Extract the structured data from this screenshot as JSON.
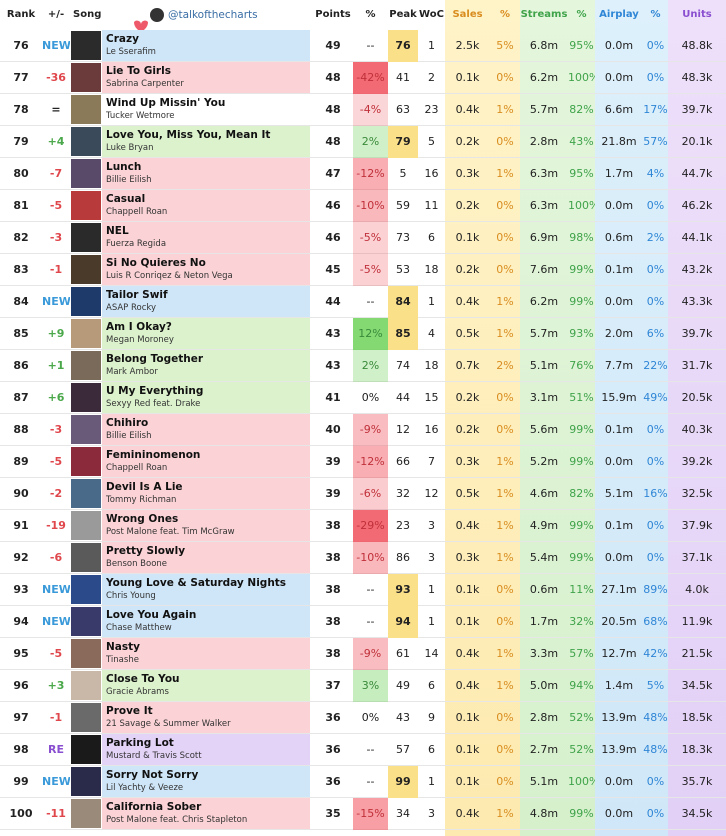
{
  "handle": "@talkofthecharts",
  "table": {
    "header": [
      "Rank",
      "+/-",
      "Song",
      "Points",
      "%",
      "Peak",
      "WoC",
      "Sales",
      "%",
      "Streams",
      "%",
      "Airplay",
      "%",
      "Units"
    ],
    "rows": [
      [
        76,
        "NEW",
        "Crazy",
        "Le Sserafim",
        49,
        "--",
        76,
        1,
        "2.5k",
        "5%",
        "6.8m",
        "95%",
        "0.0m",
        "0%",
        "48.8k"
      ],
      [
        77,
        "-36",
        "Lie To Girls",
        "Sabrina Carpenter",
        48,
        "-42%",
        41,
        2,
        "0.1k",
        "0%",
        "6.2m",
        "100%",
        "0.0m",
        "0%",
        "48.3k"
      ],
      [
        78,
        "=",
        "Wind Up Missin' You",
        "Tucker Wetmore",
        48,
        "-4%",
        63,
        23,
        "0.4k",
        "1%",
        "5.7m",
        "82%",
        "6.6m",
        "17%",
        "39.7k"
      ],
      [
        79,
        "+4",
        "Love You, Miss You, Mean It",
        "Luke Bryan",
        48,
        "2%",
        79,
        5,
        "0.2k",
        "0%",
        "2.8m",
        "43%",
        "21.8m",
        "57%",
        "20.1k"
      ],
      [
        80,
        "-7",
        "Lunch",
        "Billie Eilish",
        47,
        "-12%",
        5,
        16,
        "0.3k",
        "1%",
        "6.3m",
        "95%",
        "1.7m",
        "4%",
        "44.7k"
      ],
      [
        81,
        "-5",
        "Casual",
        "Chappell Roan",
        46,
        "-10%",
        59,
        11,
        "0.2k",
        "0%",
        "6.3m",
        "100%",
        "0.0m",
        "0%",
        "46.2k"
      ],
      [
        82,
        "-3",
        "NEL",
        "Fuerza Regida",
        46,
        "-5%",
        73,
        6,
        "0.1k",
        "0%",
        "6.9m",
        "98%",
        "0.6m",
        "2%",
        "44.1k"
      ],
      [
        83,
        "-1",
        "Si No Quieres No",
        "Luis R Conriqez & Neton Vega",
        45,
        "-5%",
        53,
        18,
        "0.2k",
        "0%",
        "7.6m",
        "99%",
        "0.1m",
        "0%",
        "43.2k"
      ],
      [
        84,
        "NEW",
        "Tailor Swif",
        "ASAP Rocky",
        44,
        "--",
        84,
        1,
        "0.4k",
        "1%",
        "6.2m",
        "99%",
        "0.0m",
        "0%",
        "43.3k"
      ],
      [
        85,
        "+9",
        "Am I Okay?",
        "Megan Moroney",
        43,
        "12%",
        85,
        4,
        "0.5k",
        "1%",
        "5.7m",
        "93%",
        "2.0m",
        "6%",
        "39.7k"
      ],
      [
        86,
        "+1",
        "Belong Together",
        "Mark Ambor",
        43,
        "2%",
        74,
        18,
        "0.7k",
        "2%",
        "5.1m",
        "76%",
        "7.7m",
        "22%",
        "31.7k"
      ],
      [
        87,
        "+6",
        "U My Everything",
        "Sexyy Red feat. Drake",
        41,
        "0%",
        44,
        15,
        "0.2k",
        "0%",
        "3.1m",
        "51%",
        "15.9m",
        "49%",
        "20.5k"
      ],
      [
        88,
        "-3",
        "Chihiro",
        "Billie Eilish",
        40,
        "-9%",
        12,
        16,
        "0.2k",
        "0%",
        "5.6m",
        "99%",
        "0.1m",
        "0%",
        "40.3k"
      ],
      [
        89,
        "-5",
        "Femininomenon",
        "Chappell Roan",
        39,
        "-12%",
        66,
        7,
        "0.3k",
        "1%",
        "5.2m",
        "99%",
        "0.0m",
        "0%",
        "39.2k"
      ],
      [
        90,
        "-2",
        "Devil Is A Lie",
        "Tommy Richman",
        39,
        "-6%",
        32,
        12,
        "0.5k",
        "1%",
        "4.6m",
        "82%",
        "5.1m",
        "16%",
        "32.5k"
      ],
      [
        91,
        "-19",
        "Wrong Ones",
        "Post Malone feat. Tim McGraw",
        38,
        "-29%",
        23,
        3,
        "0.4k",
        "1%",
        "4.9m",
        "99%",
        "0.1m",
        "0%",
        "37.9k"
      ],
      [
        92,
        "-6",
        "Pretty Slowly",
        "Benson Boone",
        38,
        "-10%",
        86,
        3,
        "0.3k",
        "1%",
        "5.4m",
        "99%",
        "0.0m",
        "0%",
        "37.1k"
      ],
      [
        93,
        "NEW",
        "Young Love & Saturday Nights",
        "Chris Young",
        38,
        "--",
        93,
        1,
        "0.1k",
        "0%",
        "0.6m",
        "11%",
        "27.1m",
        "89%",
        "4.0k"
      ],
      [
        94,
        "NEW",
        "Love You Again",
        "Chase Matthew",
        38,
        "--",
        94,
        1,
        "0.1k",
        "0%",
        "1.7m",
        "32%",
        "20.5m",
        "68%",
        "11.9k"
      ],
      [
        95,
        "-5",
        "Nasty",
        "Tinashe",
        38,
        "-9%",
        61,
        14,
        "0.4k",
        "1%",
        "3.3m",
        "57%",
        "12.7m",
        "42%",
        "21.5k"
      ],
      [
        96,
        "+3",
        "Close To You",
        "Gracie Abrams",
        37,
        "3%",
        49,
        6,
        "0.4k",
        "1%",
        "5.0m",
        "94%",
        "1.4m",
        "5%",
        "34.5k"
      ],
      [
        97,
        "-1",
        "Prove It",
        "21 Savage & Summer Walker",
        36,
        "0%",
        43,
        9,
        "0.1k",
        "0%",
        "2.8m",
        "52%",
        "13.9m",
        "48%",
        "18.5k"
      ],
      [
        98,
        "RE",
        "Parking Lot",
        "Mustard & Travis Scott",
        36,
        "--",
        57,
        6,
        "0.1k",
        "0%",
        "2.7m",
        "52%",
        "13.9m",
        "48%",
        "18.3k"
      ],
      [
        99,
        "NEW",
        "Sorry Not Sorry",
        "Lil Yachty & Veeze",
        36,
        "--",
        99,
        1,
        "0.1k",
        "0%",
        "5.1m",
        "100%",
        "0.0m",
        "0%",
        "35.7k"
      ],
      [
        100,
        "-11",
        "California Sober",
        "Post Malone feat. Chris Stapleton",
        35,
        "-15%",
        34,
        3,
        "0.4k",
        "1%",
        "4.8m",
        "99%",
        "0.0m",
        "0%",
        "34.5k"
      ]
    ]
  }
}
